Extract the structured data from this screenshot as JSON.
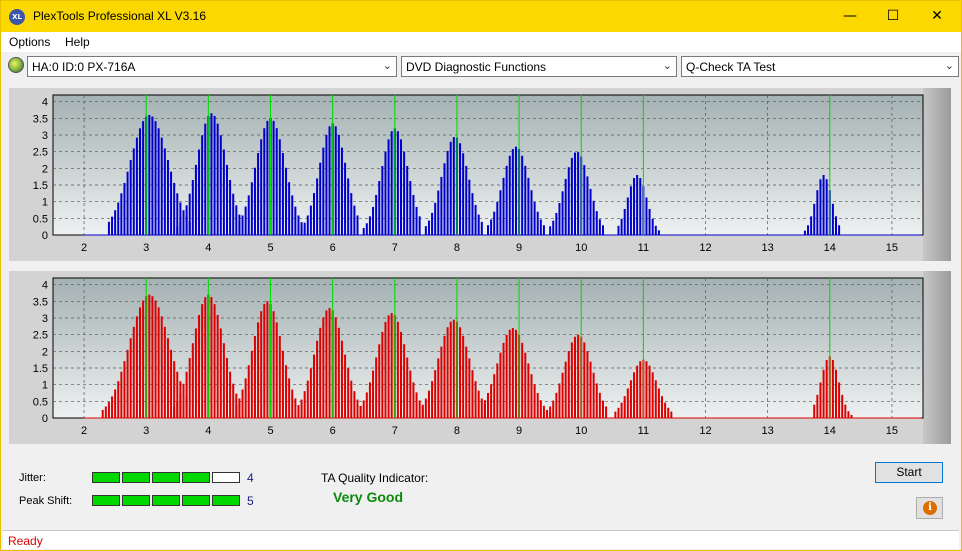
{
  "window": {
    "title": "PlexTools Professional XL V3.16",
    "controls": {
      "minimize": "—",
      "maximize": "☐",
      "close": "✕"
    }
  },
  "menu": {
    "items": [
      "Options",
      "Help"
    ]
  },
  "toolbar": {
    "drive": "HA:0 ID:0  PX-716A",
    "function": "DVD Diagnostic Functions",
    "test": "Q-Check TA Test"
  },
  "colors": {
    "title_bar": "#fbd900",
    "top_chart_bars": "#0000cc",
    "bottom_chart_bars": "#dd0000",
    "marker_lines": "#00dd00",
    "status_text": "#e00000",
    "quality_text": "#0a8a0a"
  },
  "chart_data": [
    {
      "type": "bar",
      "title": "",
      "xlabel": "",
      "ylabel": "",
      "series_color": "#0000cc",
      "xlim": [
        1.5,
        15.5
      ],
      "ylim": [
        0,
        4.2
      ],
      "x_ticks": [
        "2",
        "3",
        "4",
        "5",
        "6",
        "7",
        "8",
        "9",
        "10",
        "11",
        "12",
        "13",
        "14",
        "15"
      ],
      "y_ticks": [
        "0",
        "0.5",
        "1",
        "1.5",
        "2",
        "2.5",
        "3",
        "3.5",
        "4"
      ],
      "grid": true,
      "marker_lines": [
        3,
        4,
        5,
        6,
        7,
        8,
        9,
        10,
        11,
        14
      ],
      "peaks": [
        {
          "center": 3.05,
          "peak": 3.6,
          "from": 2.4,
          "to": 3.7
        },
        {
          "center": 4.05,
          "peak": 3.65,
          "from": 3.5,
          "to": 4.5
        },
        {
          "center": 5.0,
          "peak": 3.5,
          "from": 4.5,
          "to": 5.5
        },
        {
          "center": 6.0,
          "peak": 3.35,
          "from": 5.5,
          "to": 6.4
        },
        {
          "center": 7.0,
          "peak": 3.2,
          "from": 6.5,
          "to": 7.4
        },
        {
          "center": 7.97,
          "peak": 2.95,
          "from": 7.5,
          "to": 8.4
        },
        {
          "center": 8.95,
          "peak": 2.65,
          "from": 8.5,
          "to": 9.4
        },
        {
          "center": 9.93,
          "peak": 2.5,
          "from": 9.5,
          "to": 10.35
        },
        {
          "center": 10.9,
          "peak": 1.8,
          "from": 10.6,
          "to": 11.25
        },
        {
          "center": 13.9,
          "peak": 1.8,
          "from": 13.6,
          "to": 14.15
        }
      ]
    },
    {
      "type": "bar",
      "title": "",
      "xlabel": "",
      "ylabel": "",
      "series_color": "#dd0000",
      "xlim": [
        1.5,
        15.5
      ],
      "ylim": [
        0,
        4.2
      ],
      "x_ticks": [
        "2",
        "3",
        "4",
        "5",
        "6",
        "7",
        "8",
        "9",
        "10",
        "11",
        "12",
        "13",
        "14",
        "15"
      ],
      "y_ticks": [
        "0",
        "0.5",
        "1",
        "1.5",
        "2",
        "2.5",
        "3",
        "3.5",
        "4"
      ],
      "grid": true,
      "marker_lines": [
        3,
        4,
        5,
        6,
        7,
        8,
        9,
        10,
        11,
        14
      ],
      "peaks": [
        {
          "center": 3.05,
          "peak": 3.7,
          "from": 2.3,
          "to": 3.65
        },
        {
          "center": 4.0,
          "peak": 3.7,
          "from": 3.45,
          "to": 4.5
        },
        {
          "center": 4.95,
          "peak": 3.5,
          "from": 4.45,
          "to": 5.45
        },
        {
          "center": 5.95,
          "peak": 3.3,
          "from": 5.45,
          "to": 6.45
        },
        {
          "center": 6.95,
          "peak": 3.15,
          "from": 6.45,
          "to": 7.45
        },
        {
          "center": 7.95,
          "peak": 2.95,
          "from": 7.45,
          "to": 8.5
        },
        {
          "center": 8.9,
          "peak": 2.7,
          "from": 8.45,
          "to": 9.5
        },
        {
          "center": 9.95,
          "peak": 2.5,
          "from": 9.45,
          "to": 10.4
        },
        {
          "center": 11.0,
          "peak": 1.75,
          "from": 10.55,
          "to": 11.45
        },
        {
          "center": 14.0,
          "peak": 1.85,
          "from": 13.75,
          "to": 14.35
        }
      ]
    }
  ],
  "results": {
    "jitter_label": "Jitter:",
    "jitter_value": "4",
    "jitter_level": 4,
    "peak_shift_label": "Peak Shift:",
    "peak_shift_value": "5",
    "peak_shift_level": 5,
    "meter_segments": 5,
    "ta_quality_label": "TA Quality Indicator:",
    "ta_quality_value": "Very Good"
  },
  "buttons": {
    "start": "Start",
    "info": "i"
  },
  "status": {
    "text": "Ready"
  }
}
